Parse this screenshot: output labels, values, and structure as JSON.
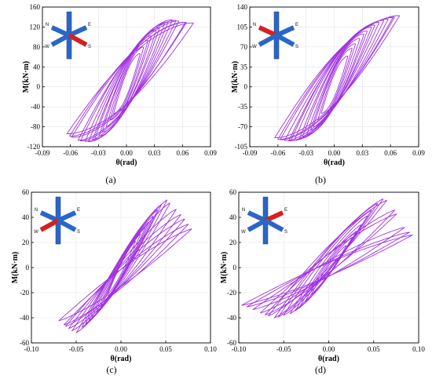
{
  "chart_data": [
    {
      "id": "a",
      "type": "line",
      "caption": "(a)",
      "xlabel": "θ(rad)",
      "ylabel": "M(kN·m)",
      "xlim": [
        -0.09,
        0.09
      ],
      "ylim": [
        -120,
        160
      ],
      "xticks": [
        -0.09,
        -0.06,
        -0.03,
        0.0,
        0.03,
        0.06,
        0.09
      ],
      "xtick_labels": [
        "-0.09",
        "-0.06",
        "-0.03",
        "0.00",
        "0.03",
        "0.06",
        "0.09"
      ],
      "yticks": [
        -120,
        -80,
        -40,
        0,
        40,
        80,
        120,
        160
      ],
      "ytick_labels": [
        "-120",
        "-80",
        "-40",
        "0",
        "40",
        "80",
        "120",
        "160"
      ],
      "grid": true,
      "color": "#a030e0",
      "inset": {
        "labels": [
          "N",
          "E",
          "W",
          "S"
        ],
        "loaded_beam": "S"
      },
      "envelope": {
        "pos": [
          [
            0.005,
            25
          ],
          [
            0.01,
            50
          ],
          [
            0.02,
            85
          ],
          [
            0.03,
            110
          ],
          [
            0.04,
            125
          ],
          [
            0.05,
            135
          ],
          [
            0.06,
            130
          ],
          [
            0.07,
            128
          ]
        ],
        "neg": [
          [
            -0.005,
            -20
          ],
          [
            -0.01,
            -40
          ],
          [
            -0.02,
            -75
          ],
          [
            -0.03,
            -100
          ],
          [
            -0.04,
            -110
          ],
          [
            -0.05,
            -108
          ],
          [
            -0.06,
            -100
          ],
          [
            -0.065,
            -92
          ]
        ]
      }
    },
    {
      "id": "b",
      "type": "line",
      "caption": "(b)",
      "xlabel": "θ(rad)",
      "ylabel": "M(kN·m)",
      "xlim": [
        -0.09,
        0.09
      ],
      "ylim": [
        -105,
        140
      ],
      "xticks": [
        -0.09,
        -0.06,
        -0.03,
        0.0,
        0.03,
        0.06,
        0.09
      ],
      "xtick_labels": [
        "-0.09",
        "-0.06",
        "-0.03",
        "0.00",
        "0.03",
        "0.06",
        "0.09"
      ],
      "yticks": [
        -105,
        -70,
        -35,
        0,
        35,
        70,
        105,
        140
      ],
      "ytick_labels": [
        "-105",
        "-70",
        "-35",
        "0",
        "35",
        "70",
        "105",
        "140"
      ],
      "grid": true,
      "color": "#a030e0",
      "inset": {
        "labels": [
          "N",
          "E",
          "W",
          "S"
        ],
        "loaded_beam": "N"
      },
      "envelope": {
        "pos": [
          [
            0.005,
            20
          ],
          [
            0.01,
            40
          ],
          [
            0.02,
            70
          ],
          [
            0.03,
            90
          ],
          [
            0.04,
            105
          ],
          [
            0.05,
            115
          ],
          [
            0.06,
            120
          ],
          [
            0.07,
            125
          ]
        ],
        "neg": [
          [
            -0.005,
            -20
          ],
          [
            -0.01,
            -35
          ],
          [
            -0.02,
            -65
          ],
          [
            -0.03,
            -85
          ],
          [
            -0.04,
            -93
          ],
          [
            -0.05,
            -95
          ],
          [
            -0.06,
            -92
          ],
          [
            -0.065,
            -88
          ]
        ]
      }
    },
    {
      "id": "c",
      "type": "line",
      "caption": "(c)",
      "xlabel": "θ(rad)",
      "ylabel": "M(kN·m)",
      "xlim": [
        -0.1,
        0.1
      ],
      "ylim": [
        -60,
        60
      ],
      "xticks": [
        -0.1,
        -0.05,
        0.0,
        0.05,
        0.1
      ],
      "xtick_labels": [
        "-0.10",
        "-0.05",
        "0.00",
        "0.05",
        "0.10"
      ],
      "yticks": [
        -60,
        -40,
        -20,
        0,
        20,
        40,
        60
      ],
      "ytick_labels": [
        "-60",
        "-40",
        "-20",
        "0",
        "20",
        "40",
        "60"
      ],
      "grid": true,
      "color": "#a030e0",
      "inset": {
        "labels": [
          "N",
          "E",
          "W",
          "S"
        ],
        "loaded_beam": "W"
      },
      "envelope": {
        "pos": [
          [
            0.01,
            15
          ],
          [
            0.02,
            25
          ],
          [
            0.03,
            35
          ],
          [
            0.04,
            45
          ],
          [
            0.05,
            55
          ],
          [
            0.06,
            48
          ],
          [
            0.07,
            40
          ],
          [
            0.08,
            30
          ]
        ],
        "neg": [
          [
            -0.01,
            -15
          ],
          [
            -0.02,
            -28
          ],
          [
            -0.03,
            -38
          ],
          [
            -0.04,
            -45
          ],
          [
            -0.05,
            -52
          ],
          [
            -0.06,
            -48
          ],
          [
            -0.07,
            -42
          ]
        ]
      }
    },
    {
      "id": "d",
      "type": "line",
      "caption": "(d)",
      "xlabel": "θ(rad)",
      "ylabel": "M(kN·m)",
      "xlim": [
        -0.1,
        0.1
      ],
      "ylim": [
        -60,
        60
      ],
      "xticks": [
        -0.1,
        -0.05,
        0.0,
        0.05,
        0.1
      ],
      "xtick_labels": [
        "-0.10",
        "-0.05",
        "0.00",
        "0.05",
        "0.10"
      ],
      "yticks": [
        -60,
        -40,
        -20,
        0,
        20,
        40,
        60
      ],
      "ytick_labels": [
        "-60",
        "-40",
        "-20",
        "0",
        "20",
        "40",
        "60"
      ],
      "grid": true,
      "color": "#a030e0",
      "inset": {
        "labels": [
          "N",
          "E",
          "W",
          "S"
        ],
        "loaded_beam": "E"
      },
      "envelope": {
        "pos": [
          [
            0.01,
            10
          ],
          [
            0.02,
            18
          ],
          [
            0.03,
            28
          ],
          [
            0.04,
            38
          ],
          [
            0.05,
            48
          ],
          [
            0.06,
            55
          ],
          [
            0.07,
            52
          ],
          [
            0.08,
            35
          ],
          [
            0.095,
            25
          ]
        ],
        "neg": [
          [
            -0.01,
            -12
          ],
          [
            -0.02,
            -22
          ],
          [
            -0.03,
            -30
          ],
          [
            -0.04,
            -36
          ],
          [
            -0.05,
            -38
          ],
          [
            -0.06,
            -40
          ],
          [
            -0.07,
            -38
          ],
          [
            -0.08,
            -35
          ],
          [
            -0.095,
            -30
          ]
        ]
      }
    }
  ]
}
